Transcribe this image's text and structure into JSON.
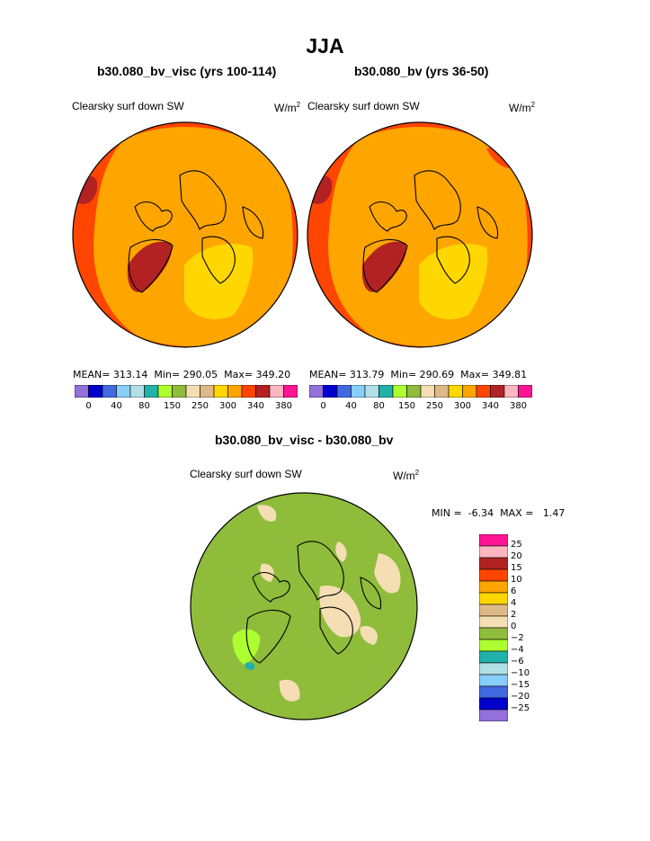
{
  "chart_data": {
    "type": "heatmap",
    "title": "JJA",
    "panels": [
      {
        "title": "b30.080_bv_visc (yrs 100-114)",
        "variable": "Clearsky surf down SW",
        "units": "W/m2",
        "stats": {
          "mean_label": "MEAN=",
          "mean": "313.14",
          "min_label": "Min=",
          "min": "290.05",
          "max_label": "Max=",
          "max": "349.20"
        }
      },
      {
        "title": "b30.080_bv (yrs 36-50)",
        "variable": "Clearsky surf down SW",
        "units": "W/m2",
        "stats": {
          "mean_label": "MEAN=",
          "mean": "313.79",
          "min_label": "Min=",
          "min": "290.69",
          "max_label": "Max=",
          "max": "349.81"
        }
      }
    ],
    "main_colorbar": {
      "colors": [
        "#9370db",
        "#0000cd",
        "#4169e1",
        "#87cefa",
        "#b0e0e6",
        "#20b2aa",
        "#adff2f",
        "#8fbc3b",
        "#f5deb3",
        "#deb887",
        "#ffd700",
        "#ffa500",
        "#ff4500",
        "#b22222",
        "#ffb6c1",
        "#ff1493"
      ],
      "tick_labels": [
        "0",
        "40",
        "80",
        "150",
        "250",
        "300",
        "340",
        "380"
      ]
    },
    "diff_panel": {
      "title": "b30.080_bv_visc - b30.080_bv",
      "variable": "Clearsky surf down SW",
      "units": "W/m2",
      "min_label": "MIN =",
      "min": "-6.34",
      "max_label": "MAX =",
      "max": "1.47",
      "levels": [
        "25",
        "20",
        "15",
        "10",
        "6",
        "4",
        "2",
        "0",
        "−2",
        "−4",
        "−6",
        "−10",
        "−15",
        "−20",
        "−25"
      ],
      "colors": [
        "#ff1493",
        "#ffb6c1",
        "#b22222",
        "#ff4500",
        "#ffa500",
        "#ffd700",
        "#deb887",
        "#f5deb3",
        "#8fbc3b",
        "#adff2f",
        "#20b2aa",
        "#b0e0e6",
        "#87cefa",
        "#4169e1",
        "#0000cd",
        "#9370db"
      ]
    }
  }
}
